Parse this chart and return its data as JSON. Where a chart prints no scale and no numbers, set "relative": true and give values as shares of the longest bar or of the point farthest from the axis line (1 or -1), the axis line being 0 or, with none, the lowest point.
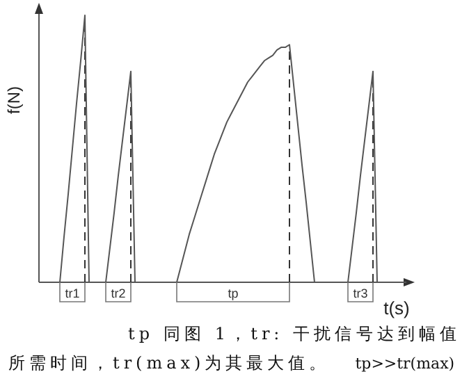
{
  "chart_data": {
    "type": "line",
    "relative": true,
    "ylabel": "f(N)",
    "xlabel": "t(s)",
    "color": "#555555",
    "line_style": "solid",
    "categories": [
      null,
      null,
      null,
      null,
      null,
      null,
      null,
      null,
      null,
      null,
      null,
      null,
      null,
      null,
      null,
      null,
      null,
      null,
      null,
      null,
      null,
      null,
      null,
      null,
      null,
      null,
      null,
      null,
      null,
      null,
      null,
      null,
      null,
      null,
      null,
      null,
      null,
      null,
      null,
      null,
      null,
      null,
      null,
      null,
      null,
      null,
      null,
      null,
      null,
      null,
      null,
      null,
      null,
      null,
      null,
      null,
      null,
      null,
      null,
      null,
      null,
      null,
      null,
      null,
      null,
      null,
      null,
      null,
      null,
      null,
      null,
      null,
      null,
      null,
      null,
      null,
      null,
      null,
      null,
      null,
      null,
      null,
      null,
      null,
      null,
      null,
      null,
      null,
      null
    ],
    "values": [
      0,
      0,
      0,
      0,
      0,
      0,
      0.17,
      0.33,
      0.5,
      0.67,
      0.83,
      1,
      0,
      0,
      0,
      0,
      0,
      0.13,
      0.26,
      0.4,
      0.53,
      0.66,
      0.79,
      0,
      0,
      0,
      0,
      0,
      0,
      0,
      0,
      0,
      0,
      0,
      0.06,
      0.12,
      0.18,
      0.23,
      0.28,
      0.33,
      0.38,
      0.43,
      0.48,
      0.52,
      0.56,
      0.6,
      0.63,
      0.66,
      0.69,
      0.72,
      0.75,
      0.77,
      0.79,
      0.81,
      0.83,
      0.84,
      0.85,
      0.87,
      0.88,
      0.88,
      0.89,
      0.74,
      0.59,
      0.44,
      0.3,
      0.15,
      0,
      0,
      0,
      0,
      0,
      0,
      0,
      0,
      0,
      0.13,
      0.26,
      0.4,
      0.53,
      0.66,
      0.79,
      0,
      0,
      0,
      0,
      0,
      0,
      0,
      0
    ],
    "annotations": [
      "tr1",
      "tr2",
      "tp",
      "tr3",
      "tp 同图 1，tr: 干扰信号达到幅值所需时间，tr(max)为其最大值。",
      "tp>>tr(max)"
    ]
  }
}
